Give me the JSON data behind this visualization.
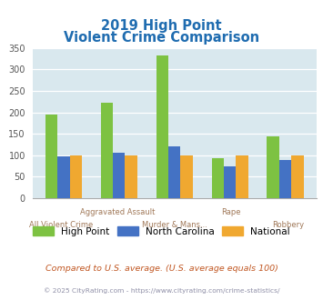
{
  "title_line1": "2019 High Point",
  "title_line2": "Violent Crime Comparison",
  "categories": [
    "All Violent Crime",
    "Aggravated Assault",
    "Murder & Mans...",
    "Rape",
    "Robbery"
  ],
  "series_names": [
    "High Point",
    "North Carolina",
    "National"
  ],
  "series_values": {
    "High Point": [
      195,
      222,
      333,
      92,
      143
    ],
    "North Carolina": [
      97,
      105,
      121,
      73,
      89
    ],
    "National": [
      100,
      99,
      99,
      100,
      99
    ]
  },
  "colors": {
    "High Point": "#7dc242",
    "North Carolina": "#4472c4",
    "National": "#f0a830"
  },
  "ylim": [
    0,
    350
  ],
  "yticks": [
    0,
    50,
    100,
    150,
    200,
    250,
    300,
    350
  ],
  "bg_color": "#d9e8ee",
  "title_color": "#1f6cb0",
  "xlabel_upper_color": "#a07858",
  "xlabel_lower_color": "#a07858",
  "footnote1": "Compared to U.S. average. (U.S. average equals 100)",
  "footnote2": "© 2025 CityRating.com - https://www.cityrating.com/crime-statistics/",
  "footnote1_color": "#c05520",
  "footnote2_color": "#9090a8"
}
